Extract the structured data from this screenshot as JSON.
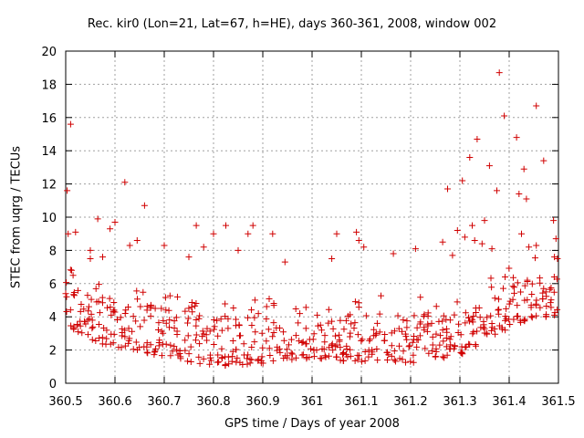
{
  "chart_data": {
    "type": "scatter",
    "title": "Rec. kir0 (Lon=21, Lat=67, h=HE), days 360-361, 2008, window 002",
    "xlabel": "GPS time / Days of year 2008",
    "ylabel": "STEC from uqrg / TECUs",
    "xlim": [
      360.5,
      361.5
    ],
    "ylim": [
      0,
      20
    ],
    "x_ticks": [
      "360.5",
      "360.6",
      "360.7",
      "360.8",
      "360.9",
      "361",
      "361.1",
      "361.2",
      "361.3",
      "361.4",
      "361.5"
    ],
    "y_ticks": [
      "0",
      "2",
      "4",
      "6",
      "8",
      "10",
      "12",
      "14",
      "16",
      "18",
      "20"
    ],
    "grid": true,
    "marker": "+",
    "color": "#d00000",
    "series": [
      {
        "points": [
          [
            360.503,
            11.6
          ],
          [
            360.505,
            9.0
          ],
          [
            360.51,
            15.6
          ],
          [
            360.512,
            6.8
          ],
          [
            360.515,
            6.5
          ],
          [
            360.52,
            9.1
          ],
          [
            360.55,
            7.5
          ],
          [
            360.55,
            8.0
          ],
          [
            360.565,
            9.9
          ],
          [
            360.575,
            7.6
          ],
          [
            360.59,
            9.3
          ],
          [
            360.6,
            9.7
          ],
          [
            360.62,
            12.1
          ],
          [
            360.63,
            8.3
          ],
          [
            360.645,
            8.6
          ],
          [
            360.66,
            10.7
          ],
          [
            360.7,
            8.3
          ],
          [
            360.75,
            7.6
          ],
          [
            360.765,
            9.5
          ],
          [
            360.78,
            8.2
          ],
          [
            360.8,
            9.0
          ],
          [
            360.825,
            9.5
          ],
          [
            360.85,
            8.0
          ],
          [
            360.87,
            9.0
          ],
          [
            360.88,
            9.5
          ],
          [
            360.92,
            9.0
          ],
          [
            360.945,
            7.3
          ],
          [
            361.04,
            7.5
          ],
          [
            361.05,
            9.0
          ],
          [
            361.09,
            9.1
          ],
          [
            361.095,
            8.6
          ],
          [
            361.105,
            8.2
          ],
          [
            361.165,
            7.8
          ],
          [
            361.21,
            8.1
          ],
          [
            361.265,
            8.5
          ],
          [
            361.275,
            11.7
          ],
          [
            361.285,
            7.7
          ],
          [
            361.295,
            9.2
          ],
          [
            361.305,
            12.2
          ],
          [
            361.31,
            8.8
          ],
          [
            361.32,
            13.6
          ],
          [
            361.325,
            9.5
          ],
          [
            361.33,
            8.6
          ],
          [
            361.335,
            14.7
          ],
          [
            361.345,
            8.4
          ],
          [
            361.35,
            9.8
          ],
          [
            361.36,
            13.1
          ],
          [
            361.365,
            8.1
          ],
          [
            361.375,
            11.6
          ],
          [
            361.38,
            18.7
          ],
          [
            361.39,
            16.1
          ],
          [
            361.415,
            14.8
          ],
          [
            361.42,
            11.4
          ],
          [
            361.425,
            9.0
          ],
          [
            361.43,
            12.9
          ],
          [
            361.435,
            11.1
          ],
          [
            361.44,
            8.2
          ],
          [
            361.455,
            16.7
          ],
          [
            361.455,
            8.3
          ],
          [
            361.47,
            13.4
          ],
          [
            361.49,
            9.8
          ],
          [
            361.495,
            8.7
          ],
          [
            361.498,
            7.5
          ]
        ]
      }
    ]
  }
}
